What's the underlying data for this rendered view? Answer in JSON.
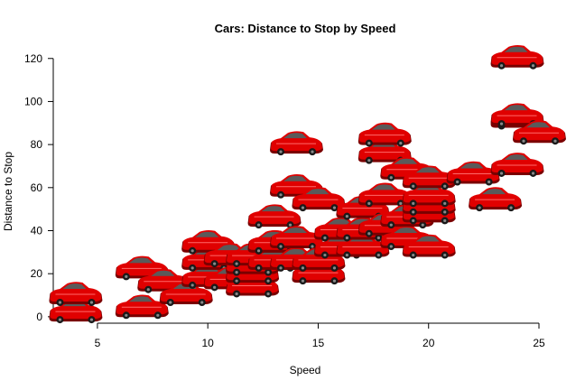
{
  "chart_data": {
    "type": "scatter",
    "title": "Cars: Distance to Stop by Speed",
    "xlabel": "Speed",
    "ylabel": "Distance to Stop",
    "xlim": [
      3,
      25
    ],
    "ylim": [
      -3,
      122
    ],
    "xticks": [
      5,
      10,
      15,
      20,
      25
    ],
    "yticks": [
      0,
      20,
      40,
      60,
      80,
      100,
      120
    ],
    "grid": false,
    "legend": "none",
    "marker_icon": "red-car-icon",
    "colors": {
      "car_body": "#e00000",
      "car_shadow": "#7a0000",
      "window": "#5a5a5a",
      "wheel": "#1a1a1a"
    },
    "points": [
      {
        "x": 4,
        "y": 2
      },
      {
        "x": 4,
        "y": 10
      },
      {
        "x": 7,
        "y": 4
      },
      {
        "x": 7,
        "y": 22
      },
      {
        "x": 8,
        "y": 16
      },
      {
        "x": 9,
        "y": 10
      },
      {
        "x": 10,
        "y": 18
      },
      {
        "x": 10,
        "y": 26
      },
      {
        "x": 10,
        "y": 34
      },
      {
        "x": 11,
        "y": 17
      },
      {
        "x": 11,
        "y": 28
      },
      {
        "x": 12,
        "y": 14
      },
      {
        "x": 12,
        "y": 20
      },
      {
        "x": 12,
        "y": 24
      },
      {
        "x": 12,
        "y": 28
      },
      {
        "x": 13,
        "y": 26
      },
      {
        "x": 13,
        "y": 34
      },
      {
        "x": 13,
        "y": 34
      },
      {
        "x": 13,
        "y": 46
      },
      {
        "x": 14,
        "y": 26
      },
      {
        "x": 14,
        "y": 36
      },
      {
        "x": 14,
        "y": 60
      },
      {
        "x": 14,
        "y": 80
      },
      {
        "x": 15,
        "y": 20
      },
      {
        "x": 15,
        "y": 26
      },
      {
        "x": 15,
        "y": 54
      },
      {
        "x": 16,
        "y": 32
      },
      {
        "x": 16,
        "y": 40
      },
      {
        "x": 17,
        "y": 32
      },
      {
        "x": 17,
        "y": 40
      },
      {
        "x": 17,
        "y": 50
      },
      {
        "x": 18,
        "y": 42
      },
      {
        "x": 18,
        "y": 56
      },
      {
        "x": 18,
        "y": 76
      },
      {
        "x": 18,
        "y": 84
      },
      {
        "x": 19,
        "y": 36
      },
      {
        "x": 19,
        "y": 46
      },
      {
        "x": 19,
        "y": 68
      },
      {
        "x": 20,
        "y": 32
      },
      {
        "x": 20,
        "y": 48
      },
      {
        "x": 20,
        "y": 52
      },
      {
        "x": 20,
        "y": 56
      },
      {
        "x": 20,
        "y": 64
      },
      {
        "x": 22,
        "y": 66
      },
      {
        "x": 23,
        "y": 54
      },
      {
        "x": 24,
        "y": 70
      },
      {
        "x": 24,
        "y": 92
      },
      {
        "x": 24,
        "y": 93
      },
      {
        "x": 24,
        "y": 120
      },
      {
        "x": 25,
        "y": 85
      }
    ]
  }
}
